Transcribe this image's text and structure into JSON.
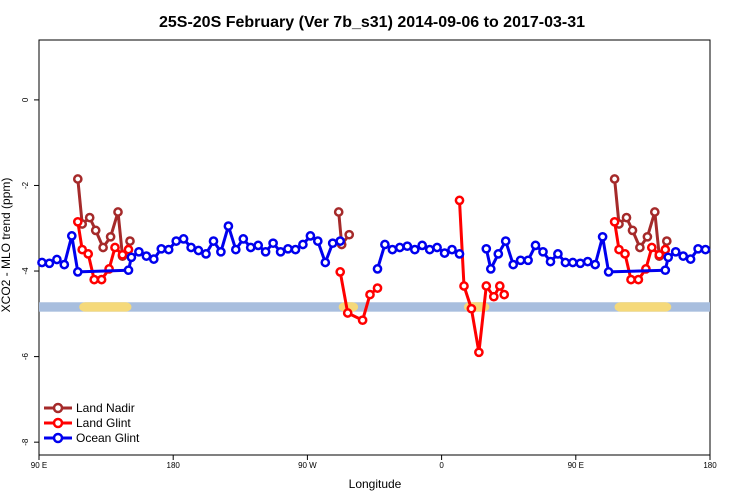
{
  "chart_data": {
    "type": "line",
    "title": "25S-20S February (Ver 7b_s31)   2014-09-06 to 2017-03-31",
    "xlabel": "Longitude",
    "ylabel": "XCO2 - MLO trend (ppm)",
    "xlim": [
      0,
      450
    ],
    "ylim": [
      -8.3,
      1.4
    ],
    "x_ticks": [
      {
        "value": 0,
        "label": "90 E"
      },
      {
        "value": 90,
        "label": "180"
      },
      {
        "value": 180,
        "label": "90 W"
      },
      {
        "value": 270,
        "label": "0"
      },
      {
        "value": 360,
        "label": "90 E"
      },
      {
        "value": 450,
        "label": "180"
      }
    ],
    "y_ticks": [
      {
        "value": 0,
        "label": "0"
      },
      {
        "value": -2,
        "label": "-2"
      },
      {
        "value": -4,
        "label": "-4"
      },
      {
        "value": -6,
        "label": "-6"
      },
      {
        "value": -8,
        "label": "-8"
      }
    ],
    "grid": false,
    "legend_position": "bottom-left",
    "land_ocean_strip": {
      "y_range": [
        -4.95,
        -4.73
      ],
      "ocean_color": "#a8bede",
      "land_color": "#f5d97a",
      "land_segments": [
        [
          27,
          62
        ],
        [
          201,
          214
        ],
        [
          285,
          302
        ],
        [
          386,
          424
        ]
      ]
    },
    "series": [
      {
        "name": "Land Nadir",
        "color": "#a52a2a",
        "segments": [
          [
            [
              26,
              -1.85
            ],
            [
              29,
              -2.9
            ],
            [
              34,
              -2.75
            ],
            [
              38,
              -3.05
            ],
            [
              43,
              -3.45
            ],
            [
              48,
              -3.2
            ],
            [
              53,
              -2.62
            ],
            [
              56,
              -3.65
            ],
            [
              61,
              -3.3
            ]
          ],
          [
            [
              201,
              -2.62
            ],
            [
              203,
              -3.38
            ],
            [
              208,
              -3.15
            ]
          ],
          [
            [
              386,
              -1.85
            ],
            [
              389,
              -2.9
            ],
            [
              394,
              -2.75
            ],
            [
              398,
              -3.05
            ],
            [
              403,
              -3.45
            ],
            [
              408,
              -3.2
            ],
            [
              413,
              -2.62
            ],
            [
              416,
              -3.65
            ],
            [
              421,
              -3.3
            ]
          ]
        ]
      },
      {
        "name": "Land Glint",
        "color": "#ff0000",
        "segments": [
          [
            [
              26,
              -2.85
            ],
            [
              29,
              -3.5
            ],
            [
              33,
              -3.6
            ],
            [
              37,
              -4.2
            ],
            [
              42,
              -4.2
            ],
            [
              47,
              -3.95
            ],
            [
              51,
              -3.45
            ],
            [
              56,
              -3.62
            ],
            [
              60,
              -3.5
            ]
          ],
          [
            [
              202,
              -4.02
            ],
            [
              207,
              -4.98
            ],
            [
              217,
              -5.15
            ],
            [
              222,
              -4.55
            ],
            [
              227,
              -4.4
            ]
          ],
          [
            [
              282,
              -2.35
            ],
            [
              285,
              -4.35
            ],
            [
              290,
              -4.88
            ],
            [
              295,
              -5.9
            ],
            [
              300,
              -4.35
            ],
            [
              305,
              -4.6
            ],
            [
              309,
              -4.35
            ],
            [
              312,
              -4.55
            ]
          ],
          [
            [
              386,
              -2.85
            ],
            [
              389,
              -3.5
            ],
            [
              393,
              -3.6
            ],
            [
              397,
              -4.2
            ],
            [
              402,
              -4.2
            ],
            [
              407,
              -3.95
            ],
            [
              411,
              -3.45
            ],
            [
              416,
              -3.62
            ],
            [
              420,
              -3.5
            ]
          ]
        ]
      },
      {
        "name": "Ocean Glint",
        "color": "#0000ee",
        "segments": [
          [
            [
              2,
              -3.8
            ],
            [
              7,
              -3.82
            ],
            [
              12,
              -3.73
            ],
            [
              17,
              -3.85
            ],
            [
              22,
              -3.18
            ],
            [
              26,
              -4.02
            ],
            [
              60,
              -3.98
            ],
            [
              62,
              -3.68
            ],
            [
              67,
              -3.55
            ],
            [
              72,
              -3.65
            ],
            [
              77,
              -3.72
            ],
            [
              82,
              -3.48
            ],
            [
              87,
              -3.5
            ],
            [
              92,
              -3.3
            ],
            [
              97,
              -3.25
            ],
            [
              102,
              -3.45
            ],
            [
              107,
              -3.52
            ],
            [
              112,
              -3.6
            ],
            [
              117,
              -3.3
            ],
            [
              122,
              -3.55
            ],
            [
              127,
              -2.95
            ],
            [
              132,
              -3.5
            ],
            [
              137,
              -3.25
            ],
            [
              142,
              -3.45
            ],
            [
              147,
              -3.4
            ],
            [
              152,
              -3.55
            ],
            [
              157,
              -3.35
            ],
            [
              162,
              -3.55
            ],
            [
              167,
              -3.48
            ],
            [
              172,
              -3.5
            ],
            [
              177,
              -3.38
            ],
            [
              182,
              -3.18
            ],
            [
              187,
              -3.3
            ],
            [
              192,
              -3.8
            ],
            [
              197,
              -3.35
            ],
            [
              202,
              -3.3
            ]
          ],
          [
            [
              227,
              -3.95
            ],
            [
              232,
              -3.38
            ],
            [
              237,
              -3.5
            ],
            [
              242,
              -3.45
            ],
            [
              247,
              -3.42
            ],
            [
              252,
              -3.5
            ],
            [
              257,
              -3.4
            ],
            [
              262,
              -3.5
            ],
            [
              267,
              -3.45
            ],
            [
              272,
              -3.58
            ],
            [
              277,
              -3.5
            ],
            [
              282,
              -3.6
            ]
          ],
          [
            [
              300,
              -3.48
            ],
            [
              303,
              -3.95
            ],
            [
              308,
              -3.6
            ],
            [
              313,
              -3.3
            ],
            [
              318,
              -3.85
            ],
            [
              323,
              -3.75
            ],
            [
              328,
              -3.75
            ],
            [
              333,
              -3.4
            ],
            [
              338,
              -3.55
            ],
            [
              343,
              -3.78
            ],
            [
              348,
              -3.6
            ],
            [
              353,
              -3.8
            ],
            [
              358,
              -3.8
            ],
            [
              363,
              -3.82
            ],
            [
              368,
              -3.78
            ],
            [
              373,
              -3.85
            ],
            [
              378,
              -3.2
            ],
            [
              382,
              -4.02
            ],
            [
              420,
              -3.98
            ],
            [
              422,
              -3.68
            ],
            [
              427,
              -3.55
            ],
            [
              432,
              -3.65
            ],
            [
              437,
              -3.72
            ],
            [
              442,
              -3.48
            ],
            [
              447,
              -3.5
            ]
          ]
        ]
      }
    ]
  }
}
